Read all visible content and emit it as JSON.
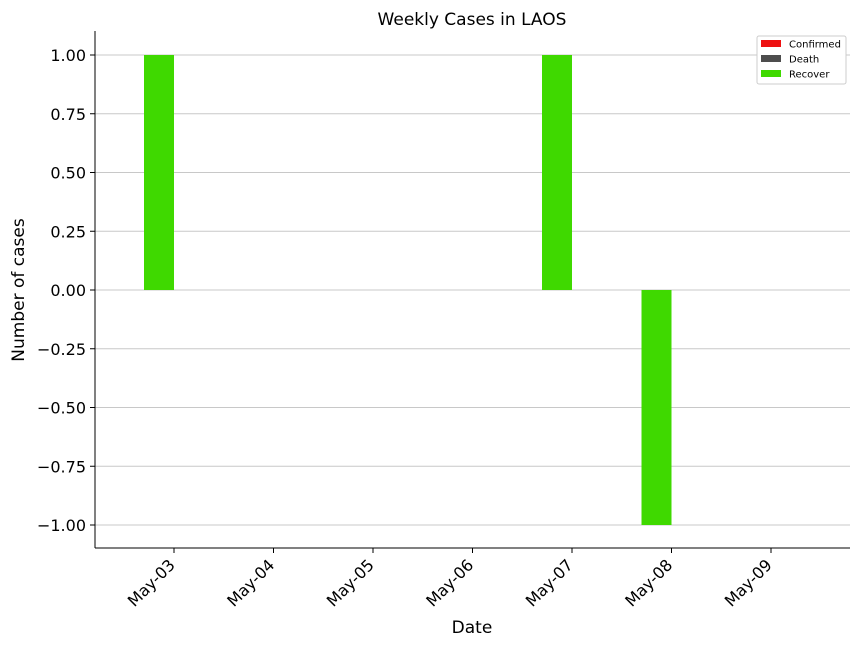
{
  "chart_data": {
    "type": "bar",
    "title": "Weekly Cases in LAOS",
    "xlabel": "Date",
    "ylabel": "Number of cases",
    "categories": [
      "May-03",
      "May-04",
      "May-05",
      "May-06",
      "May-07",
      "May-08",
      "May-09"
    ],
    "series": [
      {
        "name": "Confirmed",
        "color": "#ee1111",
        "values": [
          0,
          0,
          0,
          0,
          0,
          0,
          0
        ]
      },
      {
        "name": "Death",
        "color": "#4d4d4d",
        "values": [
          0,
          0,
          0,
          0,
          0,
          0,
          0
        ]
      },
      {
        "name": "Recover",
        "color": "#3fd900",
        "values": [
          1,
          0,
          0,
          0,
          1,
          -1,
          0
        ]
      }
    ],
    "ylim": [
      -1.1,
      1.1
    ],
    "yticks": [
      "1.00",
      "0.75",
      "0.50",
      "0.25",
      "0.00",
      "−0.25",
      "−0.50",
      "−0.75",
      "−1.00"
    ],
    "ytick_values": [
      1.0,
      0.75,
      0.5,
      0.25,
      0.0,
      -0.25,
      -0.5,
      -0.75,
      -1.0
    ],
    "grid": "y",
    "legend_position": "top-right"
  }
}
